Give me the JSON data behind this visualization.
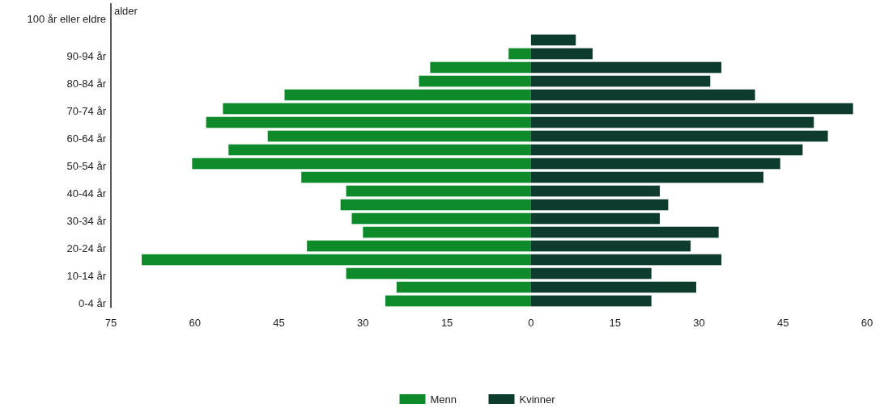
{
  "chart_data": {
    "type": "bar",
    "orientation": "horizontal",
    "stacked": true,
    "ylabel": "alder",
    "categories": [
      "100 år eller eldre",
      null,
      "90-94 år",
      null,
      "80-84 år",
      null,
      "70-74 år",
      null,
      "60-64 år",
      null,
      "50-54 år",
      null,
      "40-44 år",
      null,
      "30-34 år",
      null,
      "20-24 år",
      null,
      "10-14 år",
      null,
      "0-4 år"
    ],
    "series": [
      {
        "name": "Menn",
        "color": "#0f8a2a",
        "values": [
          0,
          0,
          -4,
          -18,
          -20,
          -44,
          -55,
          -58,
          -47,
          -54,
          -60.5,
          -41,
          -33,
          -34,
          -32,
          -30,
          -40,
          -69.5,
          -33,
          -24,
          -26
        ]
      },
      {
        "name": "Kvinner",
        "color": "#0d3b2e",
        "values": [
          0,
          8,
          11,
          34,
          32,
          40,
          57.5,
          50.5,
          53,
          48.5,
          44.5,
          41.5,
          23,
          24.5,
          23,
          33.5,
          28.5,
          34,
          21.5,
          29.5,
          21.5
        ]
      }
    ],
    "xlim": [
      -75,
      60
    ],
    "xticks": [
      {
        "value": -75,
        "label": "75"
      },
      {
        "value": -60,
        "label": "60"
      },
      {
        "value": -45,
        "label": "45"
      },
      {
        "value": -30,
        "label": "30"
      },
      {
        "value": -15,
        "label": "15"
      },
      0,
      15,
      30,
      45,
      60
    ],
    "grid": false,
    "legend": "bottom"
  }
}
